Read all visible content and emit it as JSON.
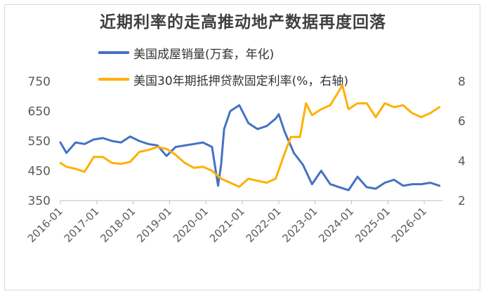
{
  "chart_data": {
    "type": "line",
    "title": "近期利率的走高推动地产数据再度回落",
    "series": [
      {
        "name": "美国成屋销量(万套，年化)",
        "axis": "left",
        "color": "#4472C4",
        "x": [
          "2016-01",
          "2016-03",
          "2016-06",
          "2016-09",
          "2016-12",
          "2017-03",
          "2017-06",
          "2017-09",
          "2017-12",
          "2018-03",
          "2018-06",
          "2018-09",
          "2018-12",
          "2019-03",
          "2019-06",
          "2019-09",
          "2019-12",
          "2020-03",
          "2020-05",
          "2020-06",
          "2020-07",
          "2020-09",
          "2020-12",
          "2021-03",
          "2021-06",
          "2021-09",
          "2021-12",
          "2022-01",
          "2022-03",
          "2022-06",
          "2022-09",
          "2022-12",
          "2023-03",
          "2023-06",
          "2023-09",
          "2023-12",
          "2024-03",
          "2024-06",
          "2024-09",
          "2024-12",
          "2025-03",
          "2025-06",
          "2025-09",
          "2025-12",
          "2026-03",
          "2026-06"
        ],
        "values": [
          545,
          510,
          545,
          540,
          555,
          560,
          550,
          545,
          565,
          550,
          540,
          535,
          500,
          530,
          535,
          540,
          545,
          530,
          400,
          470,
          590,
          650,
          670,
          610,
          590,
          600,
          625,
          640,
          580,
          510,
          470,
          405,
          450,
          405,
          395,
          385,
          430,
          395,
          390,
          410,
          420,
          400,
          405,
          405,
          410,
          400
        ]
      },
      {
        "name": "美国30年期抵押贷款固定利率(%，右轴)",
        "axis": "right",
        "color": "#FFB000",
        "x": [
          "2016-01",
          "2016-03",
          "2016-06",
          "2016-09",
          "2016-12",
          "2017-03",
          "2017-06",
          "2017-09",
          "2017-12",
          "2018-03",
          "2018-06",
          "2018-09",
          "2018-12",
          "2019-03",
          "2019-06",
          "2019-09",
          "2019-12",
          "2020-03",
          "2020-06",
          "2020-09",
          "2020-12",
          "2021-03",
          "2021-06",
          "2021-09",
          "2021-12",
          "2022-03",
          "2022-05",
          "2022-08",
          "2022-10",
          "2022-12",
          "2023-03",
          "2023-06",
          "2023-10",
          "2023-12",
          "2024-03",
          "2024-06",
          "2024-09",
          "2024-12",
          "2025-03",
          "2025-06",
          "2025-09",
          "2025-12",
          "2026-03",
          "2026-06"
        ],
        "values": [
          3.9,
          3.7,
          3.6,
          3.45,
          4.2,
          4.2,
          3.9,
          3.85,
          3.95,
          4.45,
          4.55,
          4.7,
          4.6,
          4.3,
          3.9,
          3.65,
          3.7,
          3.5,
          3.1,
          2.9,
          2.7,
          3.1,
          3.0,
          2.9,
          3.1,
          4.4,
          5.2,
          5.2,
          6.9,
          6.3,
          6.6,
          6.8,
          7.8,
          6.6,
          6.9,
          6.9,
          6.2,
          6.9,
          6.7,
          6.8,
          6.4,
          6.2,
          6.4,
          6.7
        ]
      }
    ],
    "x_ticks": [
      "2016-01",
      "2017-01",
      "2018-01",
      "2019-01",
      "2020-01",
      "2021-01",
      "2022-01",
      "2023-01",
      "2024-01",
      "2025-01",
      "2026-01"
    ],
    "y_left": {
      "min": 350,
      "max": 750,
      "ticks": [
        "350",
        "450",
        "550",
        "650",
        "750"
      ]
    },
    "y_right": {
      "min": 2,
      "max": 8,
      "ticks": [
        "2",
        "4",
        "6",
        "8"
      ]
    },
    "legend_position": "top",
    "grid": false
  }
}
